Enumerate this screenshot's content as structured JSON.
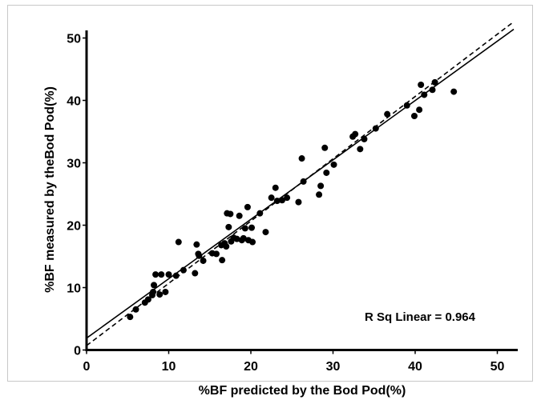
{
  "chart_data": {
    "type": "scatter",
    "title": "",
    "xlabel": "%BF predicted by the Bod Pod(%)",
    "ylabel": "%BF measured by theBod Pod(%)",
    "xlim": [
      0,
      52
    ],
    "ylim": [
      0,
      52
    ],
    "xticks": [
      "0",
      "10",
      "20",
      "30",
      "40",
      "50"
    ],
    "yticks": [
      "0",
      "10",
      "20",
      "30",
      "40",
      "50"
    ],
    "grid": false,
    "annotation": "R Sq Linear = 0.964",
    "lines": [
      {
        "style": "solid",
        "x": [
          0,
          52
        ],
        "y": [
          1.9,
          51.4
        ]
      },
      {
        "style": "dashed",
        "x": [
          0,
          52
        ],
        "y": [
          0.7,
          52.6
        ]
      }
    ],
    "points": [
      [
        5.3,
        5.3
      ],
      [
        6.0,
        6.5
      ],
      [
        7.1,
        7.6
      ],
      [
        7.5,
        8.1
      ],
      [
        8.0,
        8.8
      ],
      [
        8.1,
        9.3
      ],
      [
        8.2,
        10.4
      ],
      [
        8.4,
        12.1
      ],
      [
        8.9,
        8.9
      ],
      [
        9.1,
        12.1
      ],
      [
        9.6,
        9.3
      ],
      [
        10.0,
        12.1
      ],
      [
        10.9,
        11.9
      ],
      [
        11.2,
        17.3
      ],
      [
        11.8,
        12.8
      ],
      [
        13.2,
        12.3
      ],
      [
        13.4,
        16.9
      ],
      [
        13.6,
        15.4
      ],
      [
        13.7,
        15.1
      ],
      [
        14.2,
        14.3
      ],
      [
        15.3,
        15.5
      ],
      [
        15.8,
        15.4
      ],
      [
        16.4,
        16.8
      ],
      [
        16.5,
        14.4
      ],
      [
        16.8,
        17.1
      ],
      [
        17.0,
        16.6
      ],
      [
        17.1,
        21.9
      ],
      [
        17.3,
        19.7
      ],
      [
        17.5,
        21.8
      ],
      [
        17.6,
        17.4
      ],
      [
        17.9,
        18.0
      ],
      [
        18.3,
        17.8
      ],
      [
        18.6,
        21.5
      ],
      [
        18.9,
        17.6
      ],
      [
        19.1,
        17.9
      ],
      [
        19.3,
        19.5
      ],
      [
        19.6,
        22.9
      ],
      [
        19.7,
        17.6
      ],
      [
        20.1,
        19.6
      ],
      [
        20.2,
        17.3
      ],
      [
        21.1,
        21.9
      ],
      [
        21.8,
        18.9
      ],
      [
        22.5,
        24.4
      ],
      [
        23.0,
        26.0
      ],
      [
        23.2,
        23.9
      ],
      [
        23.8,
        24.0
      ],
      [
        24.4,
        24.4
      ],
      [
        25.8,
        23.7
      ],
      [
        26.2,
        30.7
      ],
      [
        26.4,
        27.0
      ],
      [
        28.3,
        24.9
      ],
      [
        28.5,
        26.3
      ],
      [
        29.0,
        32.4
      ],
      [
        29.2,
        28.4
      ],
      [
        30.1,
        29.7
      ],
      [
        32.4,
        34.2
      ],
      [
        32.7,
        34.6
      ],
      [
        33.3,
        32.2
      ],
      [
        33.8,
        33.8
      ],
      [
        35.2,
        35.5
      ],
      [
        36.6,
        37.8
      ],
      [
        39.0,
        39.2
      ],
      [
        39.9,
        37.5
      ],
      [
        40.5,
        38.5
      ],
      [
        40.7,
        42.5
      ],
      [
        41.1,
        40.9
      ],
      [
        42.1,
        41.7
      ],
      [
        42.4,
        42.9
      ],
      [
        44.7,
        41.4
      ]
    ]
  }
}
